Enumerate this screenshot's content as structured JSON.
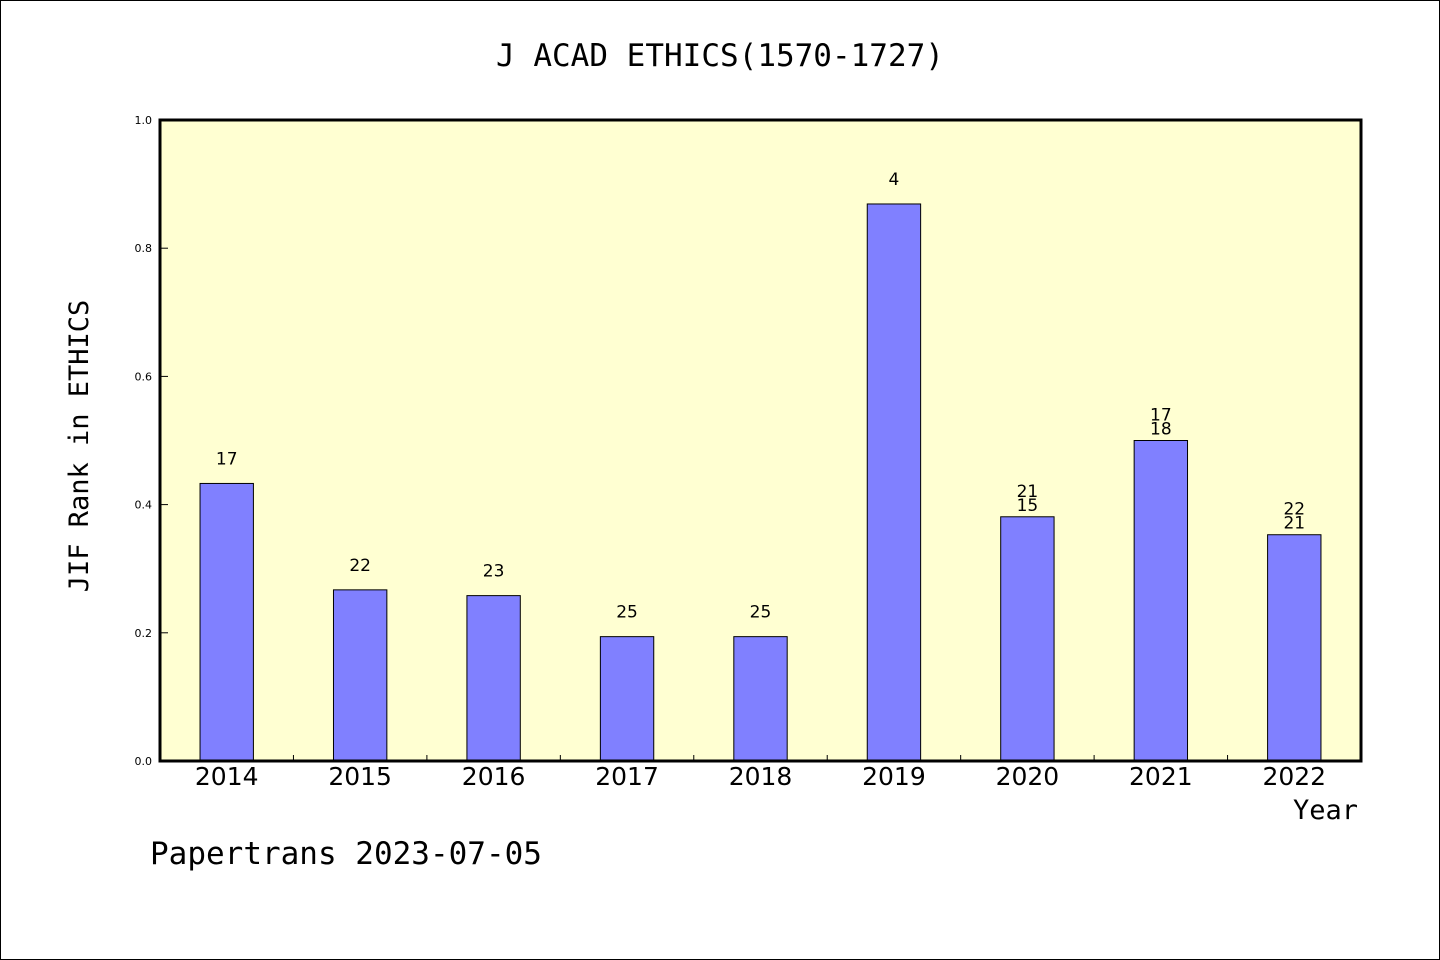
{
  "chart_data": {
    "type": "bar",
    "title": "J ACAD ETHICS(1570-1727)",
    "xlabel": "Year",
    "ylabel": "JIF Rank in ETHICS",
    "ylim": [
      0,
      1.0
    ],
    "yticks": [
      "0.0",
      "0.2",
      "0.4",
      "0.6",
      "0.8",
      "1.0"
    ],
    "categories": [
      "2014",
      "2015",
      "2016",
      "2017",
      "2018",
      "2019",
      "2020",
      "2021",
      "2022"
    ],
    "values": [
      0.433,
      0.267,
      0.258,
      0.194,
      0.194,
      0.869,
      0.381,
      0.5,
      0.353
    ],
    "bar_labels": [
      [
        "17"
      ],
      [
        "22"
      ],
      [
        "23"
      ],
      [
        "25"
      ],
      [
        "25"
      ],
      [
        "4"
      ],
      [
        "21",
        "15"
      ],
      [
        "17",
        "18"
      ],
      [
        "22",
        "21"
      ]
    ],
    "grid": false,
    "colors": {
      "plot_background": "#ffffd2",
      "bar_fill": "#8080ff",
      "bar_stroke": "#000000",
      "axis": "#000000"
    }
  },
  "footer": {
    "watermark": "Papertrans 2023-07-05"
  }
}
